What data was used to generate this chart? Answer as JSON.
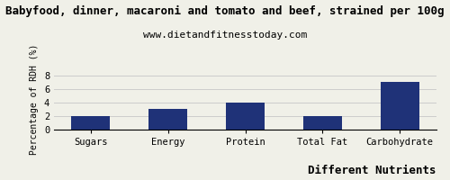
{
  "title": "Babyfood, dinner, macaroni and tomato and beef, strained per 100g",
  "subtitle": "www.dietandfitnesstoday.com",
  "categories": [
    "Sugars",
    "Energy",
    "Protein",
    "Total Fat",
    "Carbohydrate"
  ],
  "values": [
    2.0,
    3.0,
    4.0,
    2.0,
    7.0
  ],
  "bar_color": "#1f3278",
  "xlabel": "Different Nutrients",
  "ylabel": "Percentage of RDH (%)",
  "ylim": [
    0,
    9
  ],
  "yticks": [
    0,
    2,
    4,
    6,
    8
  ],
  "background_color": "#f0f0e8",
  "title_fontsize": 9,
  "subtitle_fontsize": 8,
  "xlabel_fontsize": 9,
  "ylabel_fontsize": 7,
  "tick_fontsize": 7.5,
  "grid_color": "#cccccc"
}
